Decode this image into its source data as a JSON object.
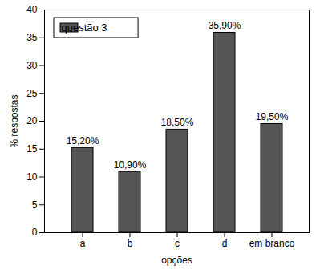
{
  "chart_data": {
    "type": "bar",
    "categories": [
      "a",
      "b",
      "c",
      "d",
      "em branco"
    ],
    "series": [
      {
        "name": "questão 3",
        "color": "#555555",
        "values": [
          15.2,
          10.9,
          18.5,
          35.9,
          19.5
        ]
      }
    ],
    "value_labels": [
      "15,20%",
      "10,90%",
      "18,50%",
      "35,90%",
      "19,50%"
    ],
    "data_labels": true,
    "xlabel": "opções",
    "ylabel": "% respostas",
    "ylim": [
      0,
      40
    ],
    "yticks": [
      0,
      5,
      10,
      15,
      20,
      25,
      30,
      35,
      40
    ],
    "legend": "upper left",
    "grid": false
  }
}
